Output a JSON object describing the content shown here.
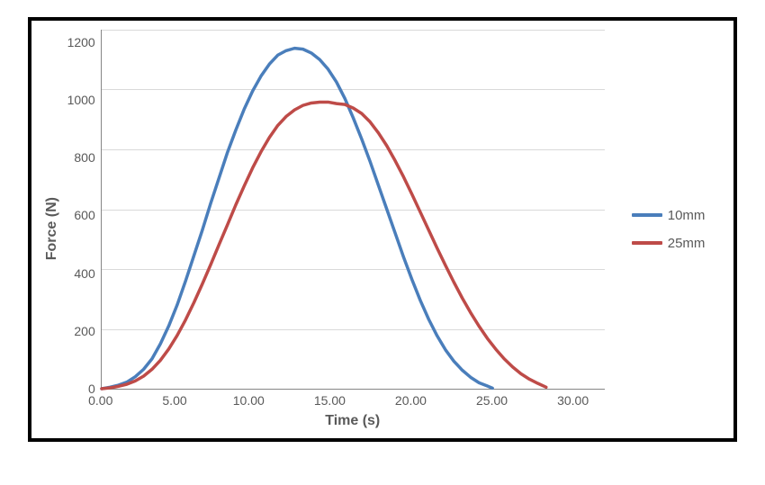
{
  "chart": {
    "type": "line",
    "background_color": "#ffffff",
    "border_color": "#000000",
    "grid_color": "#d9d9d9",
    "axis_color": "#868686",
    "text_color": "#595959",
    "xlabel": "Time (s)",
    "ylabel": "Force (N)",
    "label_fontsize": 16,
    "tick_fontsize": 14,
    "xlim": [
      0,
      30
    ],
    "ylim": [
      0,
      1200
    ],
    "xtick_step": 5,
    "ytick_step": 200,
    "xticks": [
      "0.00",
      "5.00",
      "10.00",
      "15.00",
      "20.00",
      "25.00",
      "30.00"
    ],
    "yticks": [
      "0",
      "200",
      "400",
      "600",
      "800",
      "1000",
      "1200"
    ],
    "line_width": 3.5,
    "series": [
      {
        "name": "10mm",
        "color": "#4a7ebb",
        "data": [
          [
            0.0,
            0
          ],
          [
            0.5,
            5
          ],
          [
            1.0,
            12
          ],
          [
            1.5,
            22
          ],
          [
            2.0,
            40
          ],
          [
            2.5,
            65
          ],
          [
            3.0,
            100
          ],
          [
            3.5,
            150
          ],
          [
            4.0,
            210
          ],
          [
            4.5,
            280
          ],
          [
            5.0,
            360
          ],
          [
            5.5,
            445
          ],
          [
            6.0,
            530
          ],
          [
            6.5,
            620
          ],
          [
            7.0,
            705
          ],
          [
            7.5,
            790
          ],
          [
            8.0,
            865
          ],
          [
            8.5,
            935
          ],
          [
            9.0,
            995
          ],
          [
            9.5,
            1045
          ],
          [
            10.0,
            1085
          ],
          [
            10.5,
            1115
          ],
          [
            11.0,
            1130
          ],
          [
            11.5,
            1138
          ],
          [
            12.0,
            1135
          ],
          [
            12.5,
            1122
          ],
          [
            13.0,
            1100
          ],
          [
            13.5,
            1068
          ],
          [
            14.0,
            1025
          ],
          [
            14.5,
            970
          ],
          [
            15.0,
            905
          ],
          [
            15.5,
            835
          ],
          [
            16.0,
            760
          ],
          [
            16.5,
            680
          ],
          [
            17.0,
            600
          ],
          [
            17.5,
            520
          ],
          [
            18.0,
            440
          ],
          [
            18.5,
            365
          ],
          [
            19.0,
            295
          ],
          [
            19.5,
            232
          ],
          [
            20.0,
            177
          ],
          [
            20.5,
            130
          ],
          [
            21.0,
            92
          ],
          [
            21.5,
            62
          ],
          [
            22.0,
            38
          ],
          [
            22.5,
            20
          ],
          [
            23.0,
            9
          ],
          [
            23.3,
            2
          ]
        ]
      },
      {
        "name": "25mm",
        "color": "#be4b48",
        "data": [
          [
            0.0,
            0
          ],
          [
            0.5,
            3
          ],
          [
            1.0,
            8
          ],
          [
            1.5,
            15
          ],
          [
            2.0,
            26
          ],
          [
            2.5,
            42
          ],
          [
            3.0,
            65
          ],
          [
            3.5,
            95
          ],
          [
            4.0,
            133
          ],
          [
            4.5,
            178
          ],
          [
            5.0,
            230
          ],
          [
            5.5,
            288
          ],
          [
            6.0,
            350
          ],
          [
            6.5,
            415
          ],
          [
            7.0,
            482
          ],
          [
            7.5,
            548
          ],
          [
            8.0,
            615
          ],
          [
            8.5,
            678
          ],
          [
            9.0,
            738
          ],
          [
            9.5,
            792
          ],
          [
            10.0,
            840
          ],
          [
            10.5,
            880
          ],
          [
            11.0,
            910
          ],
          [
            11.5,
            932
          ],
          [
            12.0,
            947
          ],
          [
            12.5,
            955
          ],
          [
            13.0,
            958
          ],
          [
            13.5,
            958
          ],
          [
            14.0,
            953
          ],
          [
            14.5,
            950
          ],
          [
            15.0,
            938
          ],
          [
            15.5,
            920
          ],
          [
            16.0,
            892
          ],
          [
            16.5,
            855
          ],
          [
            17.0,
            812
          ],
          [
            17.5,
            762
          ],
          [
            18.0,
            708
          ],
          [
            18.5,
            650
          ],
          [
            19.0,
            590
          ],
          [
            19.5,
            530
          ],
          [
            20.0,
            470
          ],
          [
            20.5,
            412
          ],
          [
            21.0,
            356
          ],
          [
            21.5,
            303
          ],
          [
            22.0,
            254
          ],
          [
            22.5,
            209
          ],
          [
            23.0,
            168
          ],
          [
            23.5,
            132
          ],
          [
            24.0,
            100
          ],
          [
            24.5,
            73
          ],
          [
            25.0,
            50
          ],
          [
            25.5,
            32
          ],
          [
            26.0,
            18
          ],
          [
            26.5,
            5
          ]
        ]
      }
    ],
    "legend": {
      "position": "right",
      "items": [
        {
          "label": "10mm",
          "color": "#4a7ebb"
        },
        {
          "label": "25mm",
          "color": "#be4b48"
        }
      ]
    }
  }
}
